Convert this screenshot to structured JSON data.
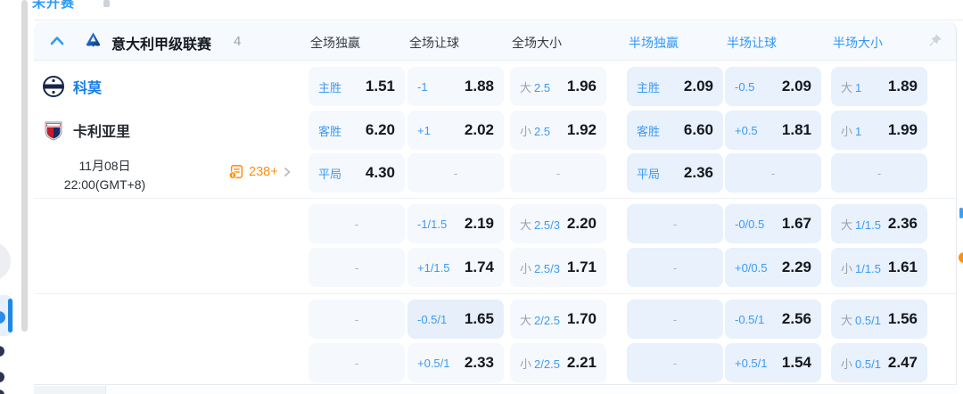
{
  "colors": {
    "accent_blue": "#2f9af7",
    "team_home_blue": "#1a7ee6",
    "odds_dark": "#14171c",
    "half_cell_bg": "#e8f1fc",
    "full_cell_bg": "#f5f8fc",
    "orange": "#ff9012"
  },
  "top_tab": {
    "label": "未开赛"
  },
  "league_header": {
    "title": "意大利甲级联赛",
    "count": "4",
    "columns": [
      {
        "label": "全场独赢",
        "half": false
      },
      {
        "label": "全场让球",
        "half": false
      },
      {
        "label": "全场大小",
        "half": false
      },
      {
        "label": "半场独赢",
        "half": true
      },
      {
        "label": "半场让球",
        "half": true
      },
      {
        "label": "半场大小",
        "half": true
      }
    ]
  },
  "match": {
    "home_team": "科莫",
    "away_team": "卡利亚里",
    "date": "11月08日",
    "time": "22:00(GMT+8)",
    "markets_count": "238+"
  },
  "odds": {
    "empty_placeholder": "-",
    "groups": [
      {
        "rows": [
          [
            {
              "label": "主胜",
              "value": "1.51"
            },
            {
              "label": "-1",
              "value": "1.88"
            },
            {
              "prefix": "大",
              "label": "2.5",
              "value": "1.96"
            },
            {
              "label": "主胜",
              "value": "2.09"
            },
            {
              "label": "-0.5",
              "value": "2.09"
            },
            {
              "prefix": "大",
              "label": "1",
              "value": "1.89"
            }
          ],
          [
            {
              "label": "客胜",
              "value": "6.20"
            },
            {
              "label": "+1",
              "value": "2.02"
            },
            {
              "prefix": "小",
              "label": "2.5",
              "value": "1.92"
            },
            {
              "label": "客胜",
              "value": "6.60"
            },
            {
              "label": "+0.5",
              "value": "1.81"
            },
            {
              "prefix": "小",
              "label": "1",
              "value": "1.99"
            }
          ],
          [
            {
              "label": "平局",
              "value": "4.30"
            },
            {
              "dash": true
            },
            {
              "dash": true
            },
            {
              "label": "平局",
              "value": "2.36"
            },
            {
              "dash": true
            },
            {
              "dash": true
            }
          ]
        ]
      },
      {
        "rows": [
          [
            {
              "dash": true
            },
            {
              "label": "-1/1.5",
              "value": "2.19"
            },
            {
              "prefix": "大",
              "label": "2.5/3",
              "value": "2.20"
            },
            {
              "dash": true
            },
            {
              "label": "-0/0.5",
              "value": "1.67"
            },
            {
              "prefix": "大",
              "label": "1/1.5",
              "value": "2.36"
            }
          ],
          [
            {
              "dash": true
            },
            {
              "label": "+1/1.5",
              "value": "1.74"
            },
            {
              "prefix": "小",
              "label": "2.5/3",
              "value": "1.71"
            },
            {
              "dash": true
            },
            {
              "label": "+0/0.5",
              "value": "2.29"
            },
            {
              "prefix": "小",
              "label": "1/1.5",
              "value": "1.61"
            }
          ]
        ]
      },
      {
        "rows": [
          [
            {
              "dash": true
            },
            {
              "label": "-0.5/1",
              "value": "1.65",
              "hl": true
            },
            {
              "prefix": "大",
              "label": "2/2.5",
              "value": "1.70"
            },
            {
              "dash": true
            },
            {
              "label": "-0.5/1",
              "value": "2.56"
            },
            {
              "prefix": "大",
              "label": "0.5/1",
              "value": "1.56"
            }
          ],
          [
            {
              "dash": true
            },
            {
              "label": "+0.5/1",
              "value": "2.33"
            },
            {
              "prefix": "小",
              "label": "2/2.5",
              "value": "2.21"
            },
            {
              "dash": true
            },
            {
              "label": "+0.5/1",
              "value": "1.54"
            },
            {
              "prefix": "小",
              "label": "0.5/1",
              "value": "2.47"
            }
          ]
        ]
      }
    ]
  }
}
